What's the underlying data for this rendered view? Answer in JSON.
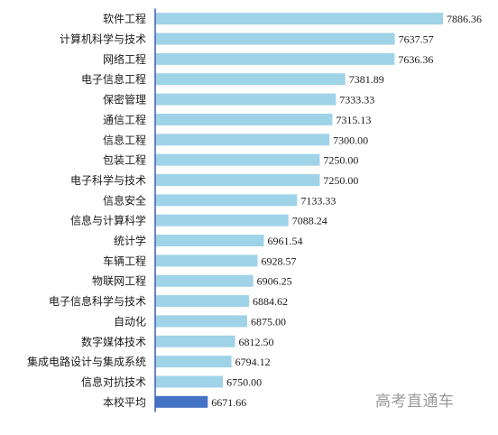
{
  "chart_data": {
    "type": "bar",
    "orientation": "horizontal",
    "categories": [
      "软件工程",
      "计算机科学与技术",
      "网络工程",
      "电子信息工程",
      "保密管理",
      "通信工程",
      "信息工程",
      "包装工程",
      "电子科学与技术",
      "信息安全",
      "信息与计算科学",
      "统计学",
      "车辆工程",
      "物联网工程",
      "电子信息科学与技术",
      "自动化",
      "数字媒体技术",
      "集成电路设计与集成系统",
      "信息对抗技术",
      "本校平均"
    ],
    "values": [
      7886.36,
      7637.57,
      7636.36,
      7381.89,
      7333.33,
      7315.13,
      7300.0,
      7250.0,
      7250.0,
      7133.33,
      7088.24,
      6961.54,
      6928.57,
      6906.25,
      6884.62,
      6875.0,
      6812.5,
      6794.12,
      6750.0,
      6671.66
    ],
    "value_labels": [
      "7886.36",
      "7637.57",
      "7636.36",
      "7381.89",
      "7333.33",
      "7315.13",
      "7300.00",
      "7250.00",
      "7250.00",
      "7133.33",
      "7088.24",
      "6961.54",
      "6928.57",
      "6906.25",
      "6884.62",
      "6875.00",
      "6812.50",
      "6794.12",
      "6750.00",
      "6671.66"
    ],
    "xlim": [
      6400,
      7950
    ],
    "grid": false,
    "colors": {
      "bar": "#9fd3e8",
      "highlight": "#4472c4",
      "axis": "#3b5fb0"
    },
    "highlight_category": "本校平均"
  },
  "watermark": "高考直通车"
}
